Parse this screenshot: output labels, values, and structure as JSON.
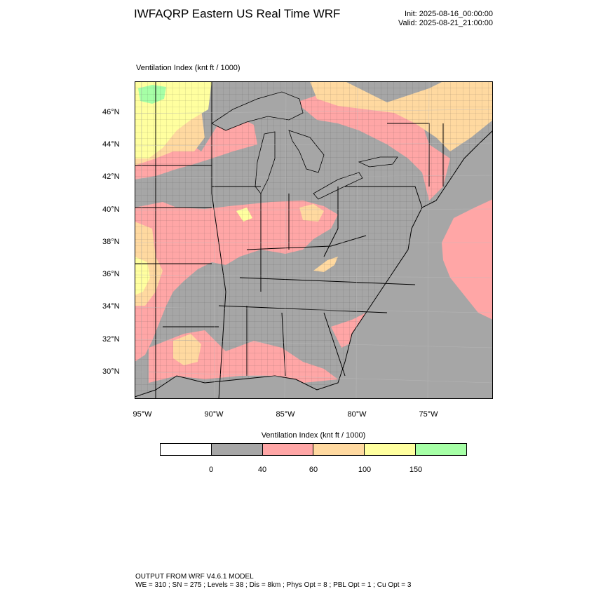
{
  "title": "IWFAQRP Eastern US Real Time WRF",
  "init": "Init: 2025-08-16_00:00:00",
  "valid": "Valid: 2025-08-21_21:00:00",
  "field_label": "Ventilation Index   (knt ft / 1000)",
  "lat_labels": [
    "46°N",
    "44°N",
    "42°N",
    "40°N",
    "38°N",
    "36°N",
    "34°N",
    "32°N",
    "30°N"
  ],
  "lon_labels": [
    "95°W",
    "90°W",
    "85°W",
    "80°W",
    "75°W"
  ],
  "colorbar": {
    "title": "Ventilation Index  (knt ft / 1000)",
    "labels": [
      "0",
      "40",
      "60",
      "100",
      "150"
    ],
    "colors": [
      "#ffffff",
      "#a6a6a6",
      "#ffa6a6",
      "#ffd9a0",
      "#ffff9f",
      "#a6ffa6"
    ]
  },
  "colors": {
    "water": "#a6a6a6",
    "land_low": "#a6a6a6",
    "land_pink": "#ffa6a6",
    "land_orange": "#ffd9a0",
    "land_yellow": "#ffff9f",
    "land_green": "#a6ffa6"
  },
  "footer": {
    "line1": "OUTPUT FROM WRF V4.6.1 MODEL",
    "line2": "WE = 310 ; SN = 275 ; Levels = 38 ; Dis = 8km ; Phys Opt = 8 ; PBL Opt = 1 ; Cu Opt = 3"
  }
}
